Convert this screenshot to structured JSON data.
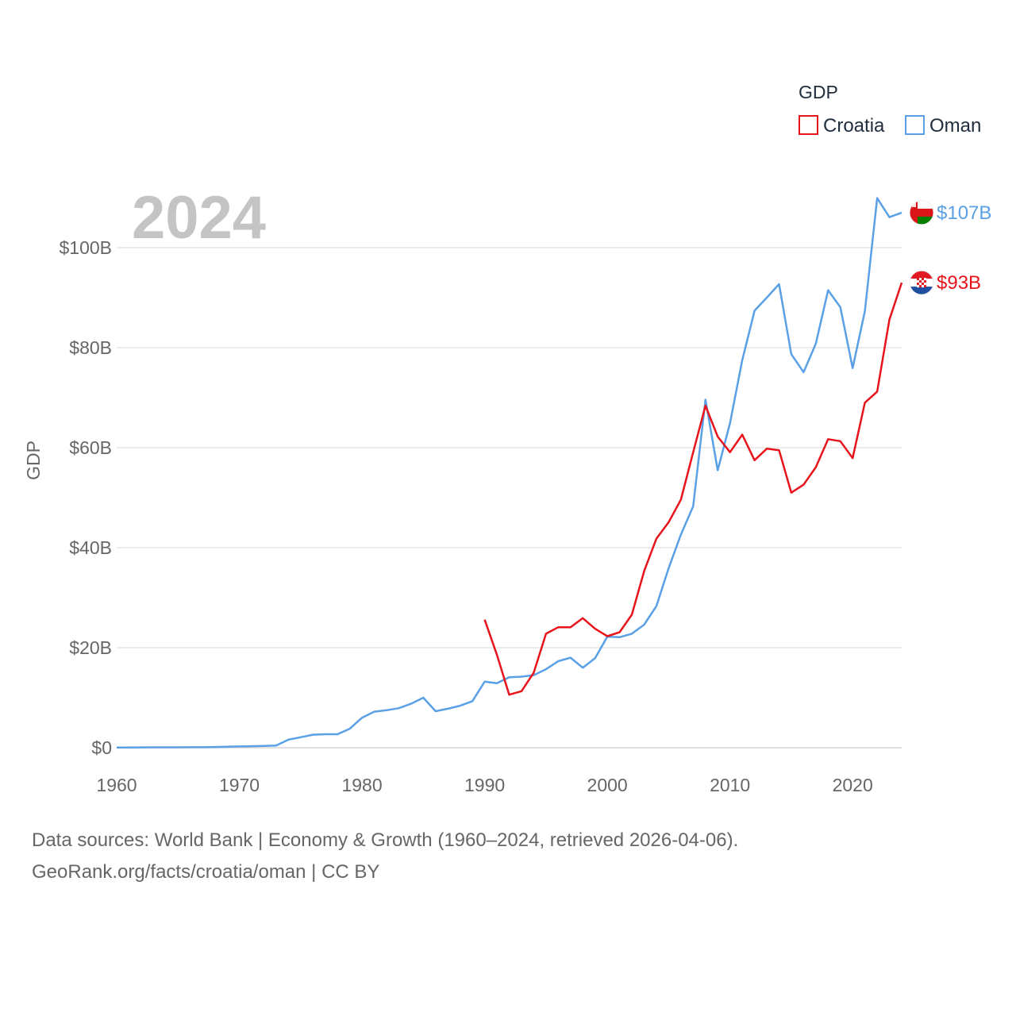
{
  "chart_data": {
    "type": "line",
    "title": "",
    "year_label": "2024",
    "ylabel": "GDP",
    "xlabel": "",
    "xlim": [
      1960,
      2024
    ],
    "ylim": [
      0,
      110
    ],
    "x_ticks": [
      1960,
      1970,
      1980,
      1990,
      2000,
      2010,
      2020
    ],
    "x_tick_labels": [
      "1960",
      "1970",
      "1980",
      "1990",
      "2000",
      "2010",
      "2020"
    ],
    "y_ticks": [
      0,
      20,
      40,
      60,
      80,
      100
    ],
    "y_tick_labels": [
      "$0",
      "$20B",
      "$40B",
      "$60B",
      "$80B",
      "$100B"
    ],
    "legend": {
      "title": "GDP",
      "placement": "top-right"
    },
    "series": [
      {
        "name": "Croatia",
        "color": "#e8141c",
        "end_label": "$93B",
        "flag": "croatia-flag-icon",
        "x": [
          1990,
          1991,
          1992,
          1993,
          1994,
          1995,
          1996,
          1997,
          1998,
          1999,
          2000,
          2001,
          2002,
          2003,
          2004,
          2005,
          2006,
          2007,
          2008,
          2009,
          2010,
          2011,
          2012,
          2013,
          2014,
          2015,
          2016,
          2017,
          2018,
          2019,
          2020,
          2021,
          2022,
          2023,
          2024
        ],
        "values": [
          25.6,
          18.6,
          10.6,
          11.3,
          15.0,
          22.8,
          24.1,
          24.1,
          25.9,
          23.8,
          22.3,
          23.1,
          26.6,
          35.3,
          41.8,
          45.1,
          49.6,
          59.1,
          68.4,
          62.2,
          59.1,
          62.6,
          57.5,
          59.8,
          59.5,
          51.0,
          52.6,
          56.1,
          61.7,
          61.3,
          57.9,
          69.0,
          71.2,
          85.6,
          93.0
        ]
      },
      {
        "name": "Oman",
        "color": "#5aa0e6",
        "end_label": "$107B",
        "flag": "oman-flag-icon",
        "x": [
          1960,
          1961,
          1962,
          1963,
          1964,
          1965,
          1966,
          1967,
          1968,
          1969,
          1970,
          1971,
          1972,
          1973,
          1974,
          1975,
          1976,
          1977,
          1978,
          1979,
          1980,
          1981,
          1982,
          1983,
          1984,
          1985,
          1986,
          1987,
          1988,
          1989,
          1990,
          1991,
          1992,
          1993,
          1994,
          1995,
          1996,
          1997,
          1998,
          1999,
          2000,
          2001,
          2002,
          2003,
          2004,
          2005,
          2006,
          2007,
          2008,
          2009,
          2010,
          2011,
          2012,
          2013,
          2014,
          2015,
          2016,
          2017,
          2018,
          2019,
          2020,
          2021,
          2022,
          2023,
          2024
        ],
        "values": [
          0.05,
          0.05,
          0.07,
          0.08,
          0.08,
          0.08,
          0.09,
          0.1,
          0.15,
          0.2,
          0.26,
          0.3,
          0.35,
          0.45,
          1.6,
          2.1,
          2.6,
          2.7,
          2.7,
          3.8,
          6.0,
          7.2,
          7.5,
          7.9,
          8.8,
          10.0,
          7.3,
          7.8,
          8.4,
          9.3,
          13.2,
          12.9,
          14.1,
          14.2,
          14.5,
          15.7,
          17.3,
          18.0,
          16.0,
          17.9,
          22.2,
          22.1,
          22.8,
          24.6,
          28.3,
          35.9,
          42.6,
          48.3,
          69.6,
          55.5,
          64.9,
          77.5,
          87.4,
          90.0,
          92.7,
          78.7,
          75.1,
          80.8,
          91.5,
          88.1,
          75.9,
          87.3,
          109.9,
          106.1,
          107.0
        ]
      }
    ]
  },
  "footer": {
    "line1": "Data sources: World Bank | Economy & Growth (1960–2024, retrieved 2026-04-06).",
    "line2": "GeoRank.org/facts/croatia/oman | CC BY"
  }
}
